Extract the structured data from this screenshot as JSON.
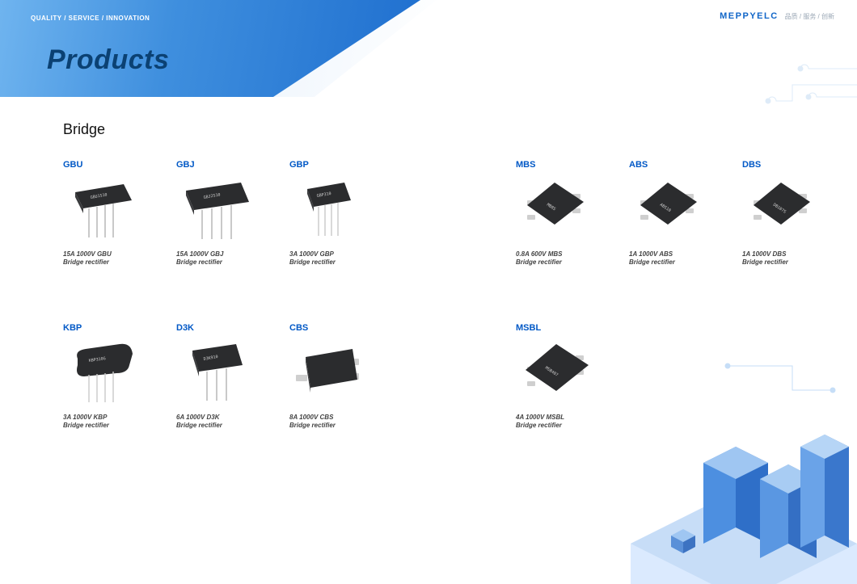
{
  "header": {
    "tagline": "QUALITY / SERVICE / INNOVATION",
    "page_title": "Products",
    "logo_name": "MEPPYELC",
    "logo_sub": "品质 / 服务 / 创新",
    "accent_color": "#1166c8",
    "banner_gradient_start": "#6fb4ef",
    "banner_gradient_end": "#1f6fcf",
    "title_color": "#0b4173"
  },
  "section": {
    "title": "Bridge",
    "label_color": "#0058c6"
  },
  "products": {
    "row1": [
      {
        "pos": "c1",
        "code": "GBU",
        "chip_label": "GBU1510",
        "spec_line1": "15A 1000V GBU",
        "spec_line2": "Bridge rectifier",
        "style": "through-4"
      },
      {
        "pos": "c2",
        "code": "GBJ",
        "chip_label": "GBJ2510",
        "spec_line1": "15A 1000V GBJ",
        "spec_line2": "Bridge rectifier",
        "style": "through-4-wide"
      },
      {
        "pos": "c3",
        "code": "GBP",
        "chip_label": "GBP310",
        "spec_line1": "3A 1000V GBP",
        "spec_line2": "Bridge rectifier",
        "style": "through-4-narrow"
      },
      {
        "pos": "c4",
        "code": "MBS",
        "chip_label": "MB8S",
        "spec_line1": "0.8A 600V MBS",
        "spec_line2": "Bridge rectifier",
        "style": "smd-4-rot"
      },
      {
        "pos": "c5",
        "code": "ABS",
        "chip_label": "ABS10",
        "spec_line1": "1A 1000V ABS",
        "spec_line2": "Bridge rectifier",
        "style": "smd-4-rot"
      },
      {
        "pos": "c6",
        "code": "DBS",
        "chip_label": "DB107S",
        "spec_line1": "1A 1000V DBS",
        "spec_line2": "Bridge rectifier",
        "style": "smd-4-rot"
      }
    ],
    "row2": [
      {
        "pos": "c1",
        "code": "KBP",
        "chip_label": "KBP310G",
        "spec_line1": "3A 1000V KBP",
        "spec_line2": "Bridge rectifier",
        "style": "through-4-round"
      },
      {
        "pos": "c2",
        "code": "D3K",
        "chip_label": "D3K910",
        "spec_line1": "6A 1000V D3K",
        "spec_line2": "Bridge rectifier",
        "style": "through-3"
      },
      {
        "pos": "c3",
        "code": "CBS",
        "chip_label": "",
        "spec_line1": "8A 1000V CBS",
        "spec_line2": "Bridge rectifier",
        "style": "smd-big"
      },
      {
        "pos": "c4",
        "code": "MSBL",
        "chip_label": "MSB407",
        "spec_line1": "4A 1000V MSBL",
        "spec_line2": "Bridge rectifier",
        "style": "smd-4-sq"
      }
    ]
  }
}
